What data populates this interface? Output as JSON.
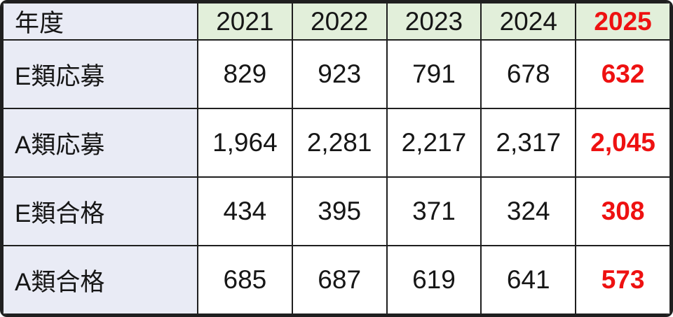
{
  "table": {
    "corner_label": "年度",
    "years": [
      "2021",
      "2022",
      "2023",
      "2024",
      "2025"
    ],
    "rows": [
      {
        "label": "E類応募",
        "values": [
          "829",
          "923",
          "791",
          "678",
          "632"
        ]
      },
      {
        "label": "A類応募",
        "values": [
          "1,964",
          "2,281",
          "2,217",
          "2,317",
          "2,045"
        ]
      },
      {
        "label": "E類合格",
        "values": [
          "434",
          "395",
          "371",
          "324",
          "308"
        ]
      },
      {
        "label": "A類合格",
        "values": [
          "685",
          "687",
          "619",
          "641",
          "573"
        ]
      }
    ],
    "highlight_year": "2025",
    "colors": {
      "header_green": "#e2efda",
      "label_lavender": "#e9ebf5",
      "highlight_red": "#ee1111",
      "border": "#1f1f1f"
    }
  },
  "chart_data": {
    "type": "table",
    "categories": [
      "2021",
      "2022",
      "2023",
      "2024",
      "2025"
    ],
    "series": [
      {
        "name": "E類応募",
        "values": [
          829,
          923,
          791,
          678,
          632
        ]
      },
      {
        "name": "A類応募",
        "values": [
          1964,
          2281,
          2217,
          2317,
          2045
        ]
      },
      {
        "name": "E類合格",
        "values": [
          434,
          395,
          371,
          324,
          308
        ]
      },
      {
        "name": "A類合格",
        "values": [
          685,
          687,
          619,
          641,
          573
        ]
      }
    ],
    "title": "",
    "corner_label": "年度",
    "highlight_column": "2025",
    "notes": "values in highlight column rendered red bold"
  }
}
